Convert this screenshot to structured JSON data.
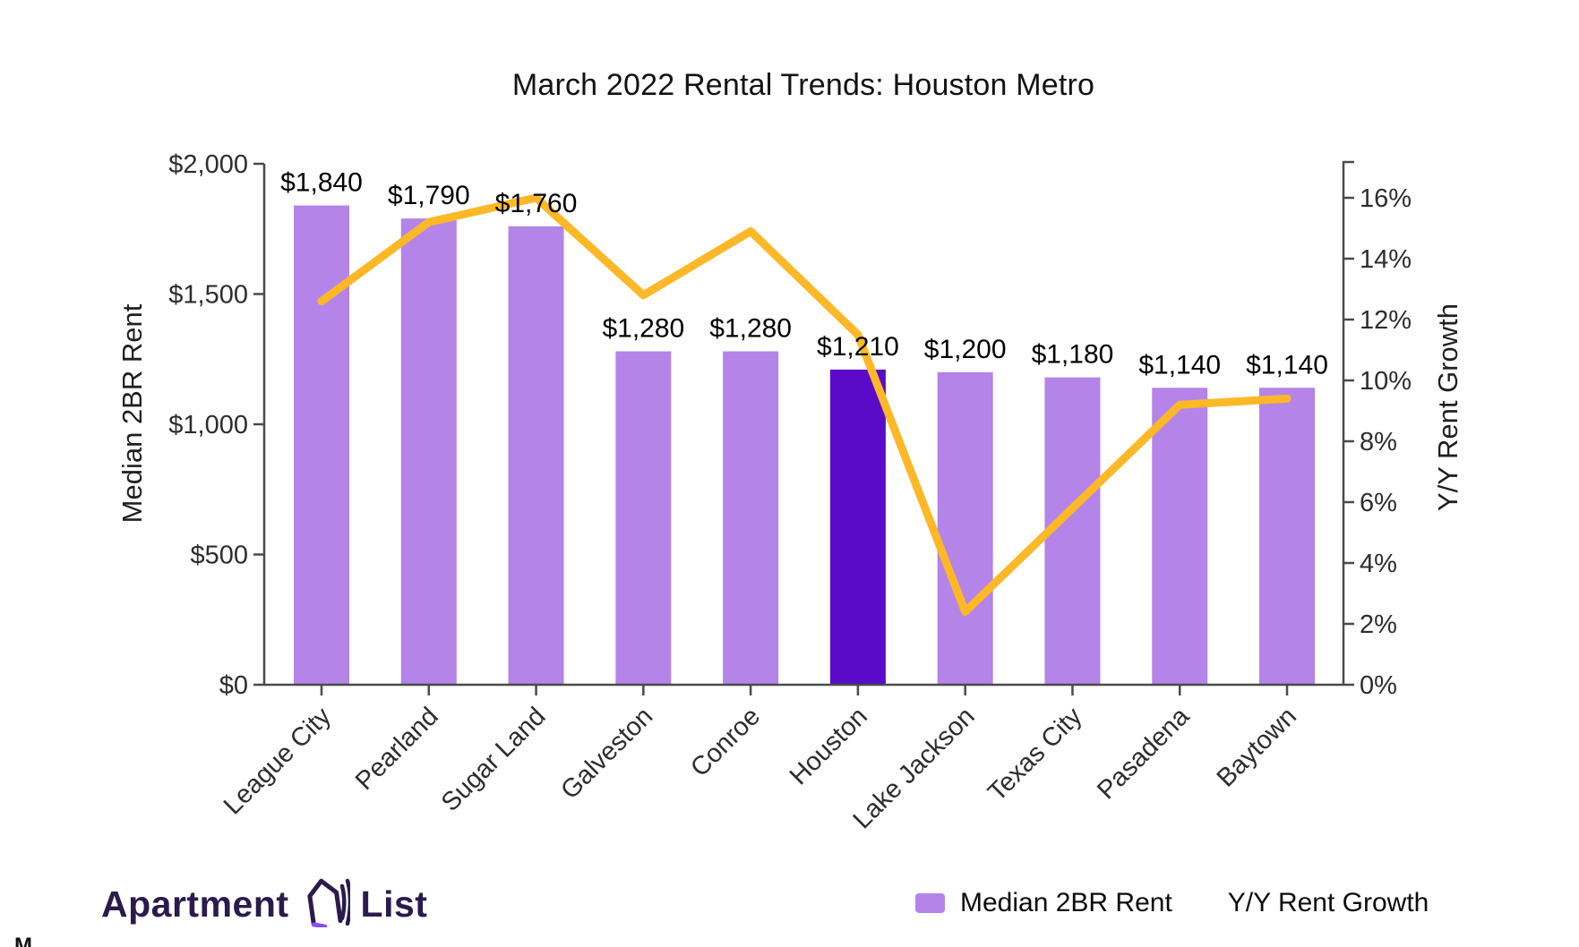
{
  "title": "March 2022 Rental Trends: Houston Metro",
  "chart_data": {
    "type": "combo",
    "title": "March 2022 Rental Trends: Houston Metro",
    "categories": [
      "League City",
      "Pearland",
      "Sugar Land",
      "Galveston",
      "Conroe",
      "Houston",
      "Lake Jackson",
      "Texas City",
      "Pasadena",
      "Baytown"
    ],
    "series": [
      {
        "name": "Median 2BR Rent",
        "type": "bar",
        "axis": "left",
        "values": [
          1840,
          1790,
          1760,
          1280,
          1280,
          1210,
          1200,
          1180,
          1140,
          1140
        ],
        "value_labels": [
          "$1,840",
          "$1,790",
          "$1,760",
          "$1,280",
          "$1,280",
          "$1,210",
          "$1,200",
          "$1,180",
          "$1,140",
          "$1,140"
        ],
        "highlight_category": "Houston",
        "highlight_index": 5
      },
      {
        "name": "Y/Y Rent Growth",
        "type": "line",
        "axis": "right",
        "values_percent": [
          12.6,
          15.2,
          16.0,
          12.8,
          14.9,
          11.5,
          2.4,
          5.8,
          9.2,
          9.4
        ]
      }
    ],
    "axes": {
      "left": {
        "label": "Median 2BR Rent",
        "range": [
          0,
          2000
        ],
        "ticks": [
          {
            "value": 0,
            "label": "$0"
          },
          {
            "value": 500,
            "label": "$500"
          },
          {
            "value": 1000,
            "label": "$1,000"
          },
          {
            "value": 1500,
            "label": "$1,500"
          },
          {
            "value": 2000,
            "label": "$2,000"
          }
        ]
      },
      "right": {
        "label": "Y/Y Rent Growth",
        "range": [
          0,
          16
        ],
        "ticks": [
          {
            "value": 0,
            "label": "0%"
          },
          {
            "value": 2,
            "label": "2%"
          },
          {
            "value": 4,
            "label": "4%"
          },
          {
            "value": 6,
            "label": "6%"
          },
          {
            "value": 8,
            "label": "8%"
          },
          {
            "value": 10,
            "label": "10%"
          },
          {
            "value": 12,
            "label": "12%"
          },
          {
            "value": 14,
            "label": "14%"
          },
          {
            "value": 16,
            "label": "16%"
          }
        ]
      }
    },
    "legend": {
      "position": "bottom-right",
      "items": [
        {
          "label": "Median 2BR Rent",
          "swatch": "bar"
        },
        {
          "label": "Y/Y Rent Growth",
          "swatch": "none"
        }
      ]
    },
    "grid": false,
    "colors": {
      "bar": "#B484E8",
      "bar_highlight": "#5A0AC8",
      "line": "#FCB827",
      "axis": "#4A4A4A",
      "tick_label": "#2D2D2D",
      "value_label": "#000000"
    }
  },
  "branding": {
    "logo_text_1": "Apartment",
    "logo_text_2": "List",
    "logo_color": "#2B1B4D",
    "logo_accent": "#8A4DFF",
    "corner_artifact": "M"
  }
}
